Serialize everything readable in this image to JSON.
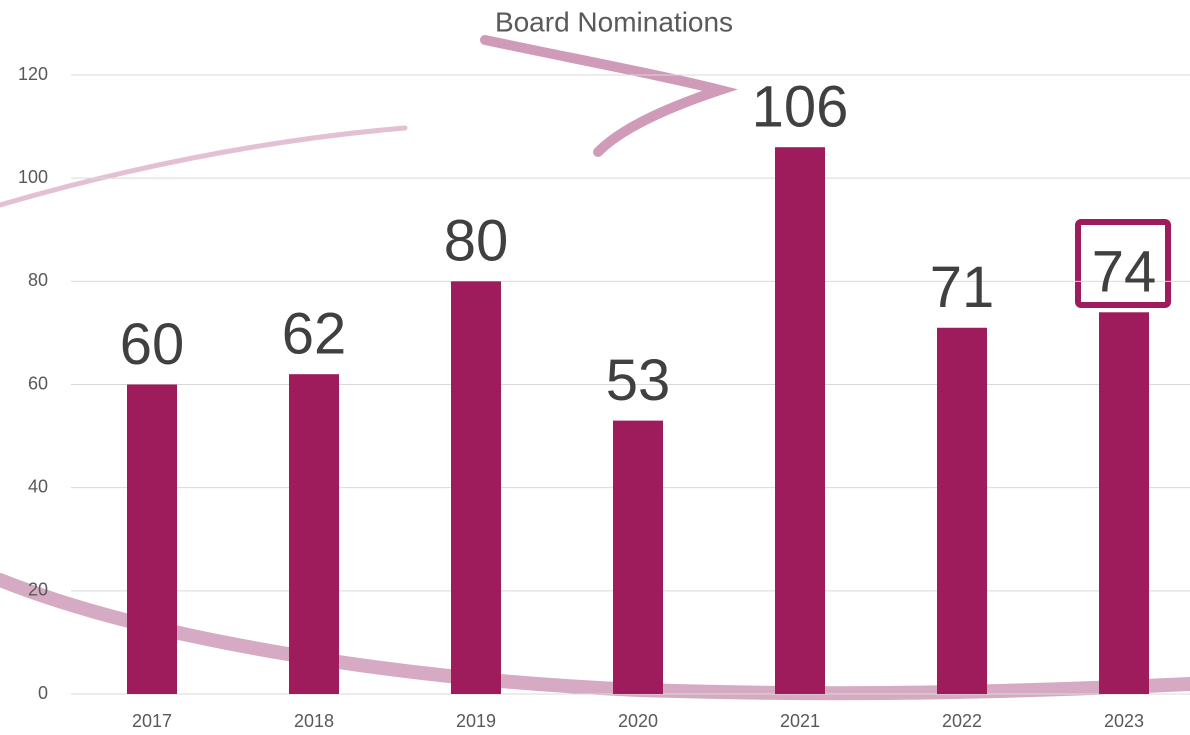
{
  "chart_data": {
    "type": "bar",
    "title": "Board Nominations",
    "categories": [
      "2017",
      "2018",
      "2019",
      "2020",
      "2021",
      "2022",
      "2023"
    ],
    "values": [
      60,
      62,
      80,
      53,
      106,
      71,
      74
    ],
    "color": "#9e1c5c",
    "ylim": [
      0,
      120
    ],
    "yticks": [
      0,
      20,
      40,
      60,
      80,
      100,
      120
    ],
    "grid": true
  }
}
